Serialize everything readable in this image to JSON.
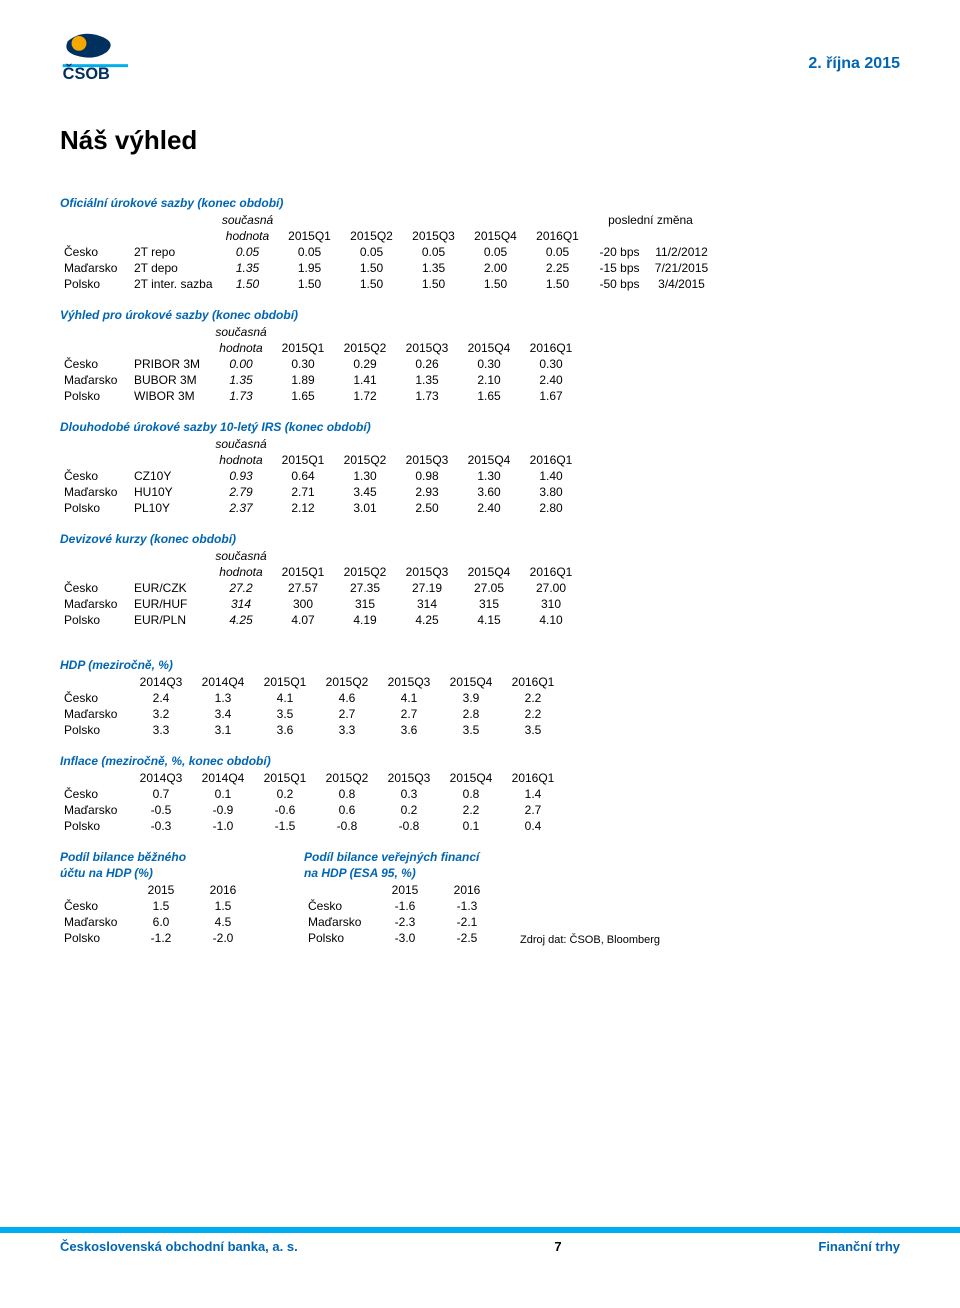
{
  "header": {
    "logo_text": "ČSOB",
    "date": "2. října 2015"
  },
  "title": "Náš výhled",
  "colors": {
    "accent_blue": "#0066b3",
    "bar_cyan": "#00aeef",
    "logo_orange": "#f4a900",
    "logo_navy": "#00305e",
    "text": "#000000",
    "background": "#ffffff"
  },
  "tables": {
    "official_rates": {
      "title": "Oficiální úrokové sazby (konec období)",
      "subhdr_left": "současná",
      "subhdr_left2": "hodnota",
      "subhdr_right": "poslední změna",
      "cols": [
        "2015Q1",
        "2015Q2",
        "2015Q3",
        "2015Q4",
        "2016Q1"
      ],
      "rows": [
        {
          "country": "Česko",
          "instr": "2T repo",
          "cur": "0.05",
          "v": [
            "0.05",
            "0.05",
            "0.05",
            "0.05",
            "0.05"
          ],
          "chg": [
            "-20 bps",
            "11/2/2012"
          ]
        },
        {
          "country": "Maďarsko",
          "instr": "2T depo",
          "cur": "1.35",
          "v": [
            "1.95",
            "1.50",
            "1.35",
            "2.00",
            "2.25"
          ],
          "chg": [
            "-15 bps",
            "7/21/2015"
          ]
        },
        {
          "country": "Polsko",
          "instr": "2T inter. sazba",
          "cur": "1.50",
          "v": [
            "1.50",
            "1.50",
            "1.50",
            "1.50",
            "1.50"
          ],
          "chg": [
            "-50 bps",
            "3/4/2015"
          ]
        }
      ]
    },
    "rate_outlook": {
      "title": "Výhled pro úrokové sazby (konec období)",
      "subhdr_left": "současná",
      "subhdr_left2": "hodnota",
      "cols": [
        "2015Q1",
        "2015Q2",
        "2015Q3",
        "2015Q4",
        "2016Q1"
      ],
      "rows": [
        {
          "country": "Česko",
          "instr": "PRIBOR 3M",
          "cur": "0.00",
          "v": [
            "0.30",
            "0.29",
            "0.26",
            "0.30",
            "0.30"
          ]
        },
        {
          "country": "Maďarsko",
          "instr": "BUBOR 3M",
          "cur": "1.35",
          "v": [
            "1.89",
            "1.41",
            "1.35",
            "2.10",
            "2.40"
          ]
        },
        {
          "country": "Polsko",
          "instr": "WIBOR 3M",
          "cur": "1.73",
          "v": [
            "1.65",
            "1.72",
            "1.73",
            "1.65",
            "1.67"
          ]
        }
      ]
    },
    "long_rates": {
      "title": "Dlouhodobé úrokové sazby 10-letý IRS (konec období)",
      "subhdr_left": "současná",
      "subhdr_left2": "hodnota",
      "cols": [
        "2015Q1",
        "2015Q2",
        "2015Q3",
        "2015Q4",
        "2016Q1"
      ],
      "rows": [
        {
          "country": "Česko",
          "instr": "CZ10Y",
          "cur": "0.93",
          "v": [
            "0.64",
            "1.30",
            "0.98",
            "1.30",
            "1.40"
          ]
        },
        {
          "country": "Maďarsko",
          "instr": "HU10Y",
          "cur": "2.79",
          "v": [
            "2.71",
            "3.45",
            "2.93",
            "3.60",
            "3.80"
          ]
        },
        {
          "country": "Polsko",
          "instr": "PL10Y",
          "cur": "2.37",
          "v": [
            "2.12",
            "3.01",
            "2.50",
            "2.40",
            "2.80"
          ]
        }
      ]
    },
    "fx": {
      "title": "Devizové kurzy (konec období)",
      "subhdr_left": "současná",
      "subhdr_left2": "hodnota",
      "cols": [
        "2015Q1",
        "2015Q2",
        "2015Q3",
        "2015Q4",
        "2016Q1"
      ],
      "rows": [
        {
          "country": "Česko",
          "instr": "EUR/CZK",
          "cur": "27.2",
          "v": [
            "27.57",
            "27.35",
            "27.19",
            "27.05",
            "27.00"
          ]
        },
        {
          "country": "Maďarsko",
          "instr": "EUR/HUF",
          "cur": "314",
          "v": [
            "300",
            "315",
            "314",
            "315",
            "310"
          ]
        },
        {
          "country": "Polsko",
          "instr": "EUR/PLN",
          "cur": "4.25",
          "v": [
            "4.07",
            "4.19",
            "4.25",
            "4.15",
            "4.10"
          ]
        }
      ]
    },
    "gdp": {
      "title": "HDP (meziročně, %)",
      "cols": [
        "2014Q3",
        "2014Q4",
        "2015Q1",
        "2015Q2",
        "2015Q3",
        "2015Q4",
        "2016Q1"
      ],
      "rows": [
        {
          "country": "Česko",
          "v": [
            "2.4",
            "1.3",
            "4.1",
            "4.6",
            "4.1",
            "3.9",
            "2.2"
          ]
        },
        {
          "country": "Maďarsko",
          "v": [
            "3.2",
            "3.4",
            "3.5",
            "2.7",
            "2.7",
            "2.8",
            "2.2"
          ]
        },
        {
          "country": "Polsko",
          "v": [
            "3.3",
            "3.1",
            "3.6",
            "3.3",
            "3.6",
            "3.5",
            "3.5"
          ]
        }
      ]
    },
    "inflation": {
      "title": "Inflace (meziročně, %, konec období)",
      "cols": [
        "2014Q3",
        "2014Q4",
        "2015Q1",
        "2015Q2",
        "2015Q3",
        "2015Q4",
        "2016Q1"
      ],
      "rows": [
        {
          "country": "Česko",
          "v": [
            "0.7",
            "0.1",
            "0.2",
            "0.8",
            "0.3",
            "0.8",
            "1.4"
          ]
        },
        {
          "country": "Maďarsko",
          "v": [
            "-0.5",
            "-0.9",
            "-0.6",
            "0.6",
            "0.2",
            "2.2",
            "2.7"
          ]
        },
        {
          "country": "Polsko",
          "v": [
            "-0.3",
            "-1.0",
            "-1.5",
            "-0.8",
            "-0.8",
            "0.1",
            "0.4"
          ]
        }
      ]
    },
    "current_account": {
      "title1": "Podíl bilance běžného",
      "title2": "účtu na HDP (%)",
      "cols": [
        "2015",
        "2016"
      ],
      "rows": [
        {
          "country": "Česko",
          "v": [
            "1.5",
            "1.5"
          ]
        },
        {
          "country": "Maďarsko",
          "v": [
            "6.0",
            "4.5"
          ]
        },
        {
          "country": "Polsko",
          "v": [
            "-1.2",
            "-2.0"
          ]
        }
      ]
    },
    "gov_balance": {
      "title1": "Podíl bilance veřejných financí",
      "title2": "na HDP (ESA 95, %)",
      "cols": [
        "2015",
        "2016"
      ],
      "rows": [
        {
          "country": "Česko",
          "v": [
            "-1.6",
            "-1.3"
          ]
        },
        {
          "country": "Maďarsko",
          "v": [
            "-2.3",
            "-2.1"
          ]
        },
        {
          "country": "Polsko",
          "v": [
            "-3.0",
            "-2.5"
          ]
        }
      ]
    }
  },
  "source": "Zdroj dat: ČSOB, Bloomberg",
  "footer": {
    "company": "Československá obchodní banka, a. s.",
    "page": "7",
    "section": "Finanční trhy"
  }
}
